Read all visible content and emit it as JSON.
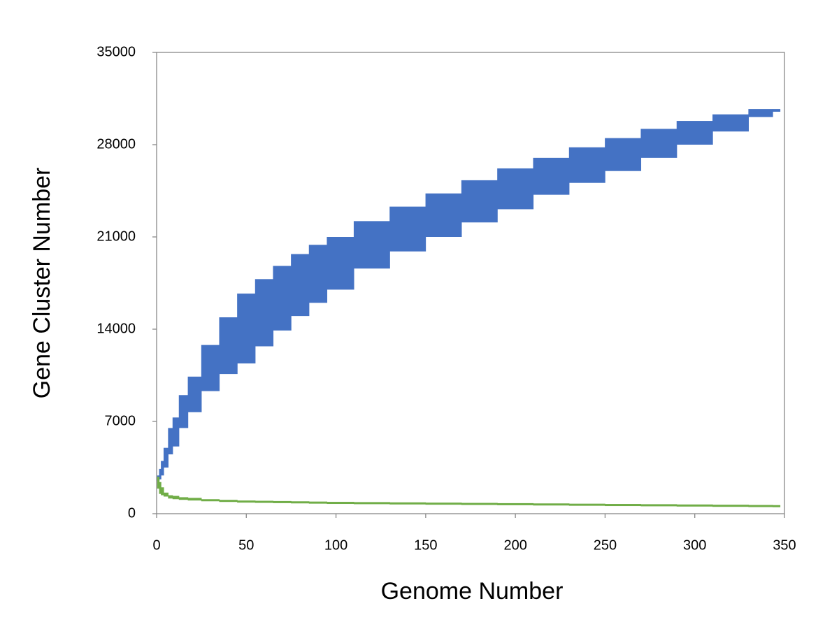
{
  "chart_data": {
    "type": "range",
    "x_label": "Genome Number",
    "y_label": "Gene Cluster Number",
    "xlim": [
      0,
      350
    ],
    "xticks": [
      0,
      50,
      100,
      150,
      200,
      250,
      300,
      350
    ],
    "ylim": [
      0,
      35000
    ],
    "yticks": [
      0,
      7000,
      14000,
      21000,
      28000,
      35000
    ],
    "grid": false,
    "x": [
      1,
      2,
      3,
      5,
      8,
      10,
      15,
      20,
      30,
      40,
      50,
      60,
      70,
      80,
      90,
      100,
      120,
      140,
      160,
      180,
      200,
      220,
      240,
      260,
      280,
      300,
      320,
      340,
      347
    ],
    "series": [
      {
        "color": "#4472c4",
        "high": [
          2900,
          3400,
          4000,
          5000,
          6500,
          7300,
          9000,
          10400,
          12800,
          14900,
          16700,
          17800,
          18800,
          19700,
          20400,
          21000,
          22200,
          23300,
          24300,
          25300,
          26200,
          27000,
          27800,
          28500,
          29200,
          29800,
          30300,
          30700,
          30700
        ],
        "low": [
          2500,
          2600,
          2900,
          3500,
          4500,
          5100,
          6500,
          7700,
          9300,
          10600,
          11400,
          12700,
          13900,
          15000,
          16000,
          17000,
          18600,
          19900,
          21000,
          22100,
          23100,
          24200,
          25100,
          26000,
          27000,
          28000,
          29000,
          30100,
          30500
        ]
      },
      {
        "color": "#70ad47",
        "high": [
          2800,
          2400,
          2000,
          1600,
          1400,
          1350,
          1250,
          1200,
          1100,
          1050,
          1000,
          980,
          960,
          940,
          920,
          900,
          880,
          860,
          840,
          820,
          800,
          780,
          760,
          740,
          720,
          700,
          680,
          660,
          650
        ],
        "low": [
          1900,
          1500,
          1400,
          1300,
          1150,
          1100,
          1050,
          1000,
          950,
          900,
          880,
          860,
          840,
          820,
          800,
          790,
          770,
          750,
          730,
          710,
          690,
          680,
          670,
          660,
          650,
          630,
          610,
          590,
          590
        ]
      }
    ]
  }
}
